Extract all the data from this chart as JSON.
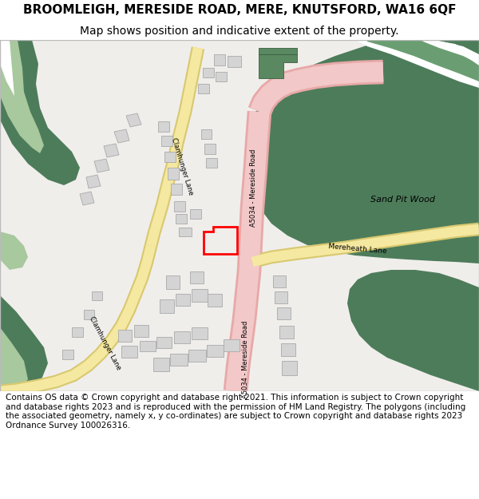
{
  "title": "BROOMLEIGH, MERESIDE ROAD, MERE, KNUTSFORD, WA16 6QF",
  "subtitle": "Map shows position and indicative extent of the property.",
  "footer": "Contains OS data © Crown copyright and database right 2021. This information is subject to Crown copyright and database rights 2023 and is reproduced with the permission of HM Land Registry. The polygons (including the associated geometry, namely x, y co-ordinates) are subject to Crown copyright and database rights 2023 Ordnance Survey 100026316.",
  "map_bg": "#f0eeeb",
  "green_dark": "#4d7c5a",
  "green_mid": "#6a9e72",
  "green_light": "#a8c89e",
  "road_pink_fill": "#f2c8c8",
  "road_pink_border": "#e8a8a8",
  "road_yellow_fill": "#f5e8a0",
  "road_yellow_border": "#d8c870",
  "building_fill": "#d4d4d4",
  "building_edge": "#aaaaaa",
  "plot_color": "#ff0000",
  "white_path": "#ffffff",
  "title_fontsize": 11,
  "subtitle_fontsize": 10,
  "footer_fontsize": 7.5
}
